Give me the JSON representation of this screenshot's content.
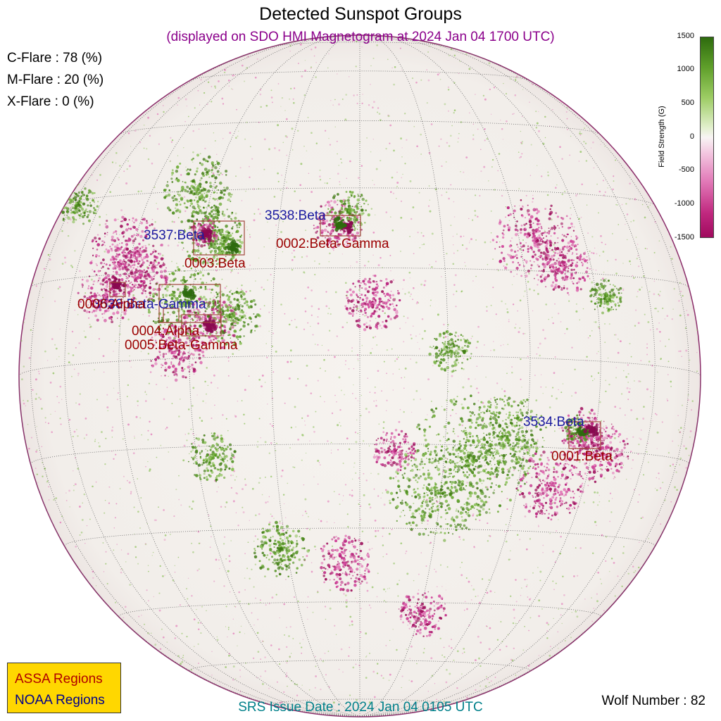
{
  "title": "Detected Sunspot Groups",
  "subtitle": "(displayed on SDO HMI Magnetogram at 2024 Jan 04 1700 UTC)",
  "flare_probabilities": [
    {
      "label": "C-Flare : 78 (%)"
    },
    {
      "label": "M-Flare : 20 (%)"
    },
    {
      "label": "X-Flare :  0 (%)"
    }
  ],
  "colorbar": {
    "label": "Field Strength (G)",
    "ticks": [
      "1500",
      "1000",
      "500",
      "0",
      "-500",
      "-1000",
      "-1500"
    ],
    "positive_color": "#2e6b0e",
    "negative_color": "#a00a5e"
  },
  "noaa_regions": [
    {
      "label": "3538:Beta"
    },
    {
      "label": "3537:Beta"
    },
    {
      "label": "3536:Beta-Gamma"
    },
    {
      "label": "3534:Beta"
    }
  ],
  "assa_regions": [
    {
      "label": "0002:Beta-Gamma"
    },
    {
      "label": "0003:Beta"
    },
    {
      "label": "0006:Alpha"
    },
    {
      "label": "0004:Alpha"
    },
    {
      "label": "0005:Beta-Gamma"
    },
    {
      "label": "0001:Beta"
    }
  ],
  "legend": {
    "assa": "ASSA Regions",
    "noaa": "NOAA Regions",
    "assa_color": "#b00000",
    "noaa_color": "#00008b",
    "background": "#ffd700"
  },
  "srs_issue": "SRS Issue Date : 2024 Jan 04 0105 UTC",
  "wolf_number": "Wolf Number : 82"
}
